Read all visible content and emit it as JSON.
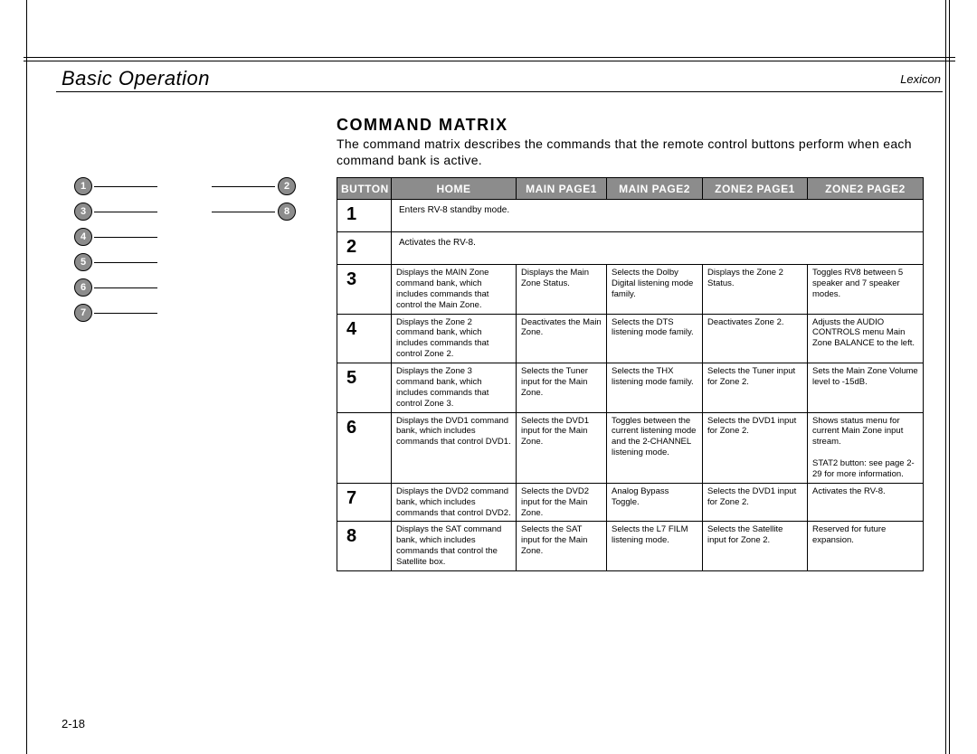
{
  "header": {
    "left": "Basic Operation",
    "right": "Lexicon"
  },
  "section_title": "COMMAND MATRIX",
  "intro": "The command matrix describes the commands that the remote control buttons perform when each command bank is active.",
  "page_number": "2-18",
  "diagram": {
    "left_col": [
      "1",
      "3",
      "4",
      "5",
      "6",
      "7"
    ],
    "right_pairs": [
      [
        "1",
        "2"
      ],
      [
        "3",
        "8"
      ]
    ]
  },
  "table": {
    "columns": [
      "BUTTON",
      "HOME",
      "MAIN PAGE1",
      "MAIN PAGE2",
      "ZONE2 PAGE1",
      "ZONE2 PAGE2"
    ],
    "header_bg": "#8c8c8c",
    "header_fg": "#ffffff",
    "rows": [
      {
        "num": "1",
        "full": "Enters RV-8 standby mode."
      },
      {
        "num": "2",
        "full": "Activates the RV-8."
      },
      {
        "num": "3",
        "home": "Displays the MAIN Zone command bank, which includes commands that control the Main Zone.",
        "mp1": "Displays the Main Zone Status.",
        "mp2": "Selects the Dolby Digital listening mode family.",
        "zp1": "Displays the Zone 2 Status.",
        "zp2": "Toggles RV8 between 5 speaker and 7 speaker modes."
      },
      {
        "num": "4",
        "home": "Displays the Zone 2 command bank, which includes commands that control Zone 2.",
        "mp1": "Deactivates the Main Zone.",
        "mp2": "Selects the DTS listening mode family.",
        "zp1": "Deactivates Zone 2.",
        "zp2": "Adjusts the AUDIO CONTROLS menu Main Zone BALANCE to the left."
      },
      {
        "num": "5",
        "home": "Displays the Zone 3 command bank, which includes commands that control Zone 3.",
        "mp1": "Selects the Tuner input for the Main Zone.",
        "mp2": "Selects the THX listening mode family.",
        "zp1": "Selects the Tuner input for Zone 2.",
        "zp2": "Sets the Main Zone Volume level to -15dB."
      },
      {
        "num": "6",
        "home": "Displays the DVD1 command bank, which includes commands that control DVD1.",
        "mp1": "Selects the DVD1 input for the Main Zone.",
        "mp2": "Toggles between the current listening mode and the 2-CHANNEL listening mode.",
        "zp1": "Selects the DVD1 input for Zone 2.",
        "zp2": "Shows status menu for current Main Zone input stream.\n\nSTAT2 button: see page 2-29 for more information."
      },
      {
        "num": "7",
        "home": "Displays the DVD2 command bank, which includes commands that control DVD2.",
        "mp1": "Selects the DVD2 input for the Main Zone.",
        "mp2": "Analog Bypass Toggle.",
        "zp1": "Selects the DVD1 input for Zone 2.",
        "zp2": "Activates the RV-8."
      },
      {
        "num": "8",
        "home": "Displays the SAT command bank, which includes commands that control the Satellite box.",
        "mp1": "Selects the SAT input for the Main Zone.",
        "mp2": "Selects the L7 FILM listening mode.",
        "zp1": "Selects the Satellite input for Zone 2.",
        "zp2": "Reserved for future expansion."
      }
    ]
  }
}
